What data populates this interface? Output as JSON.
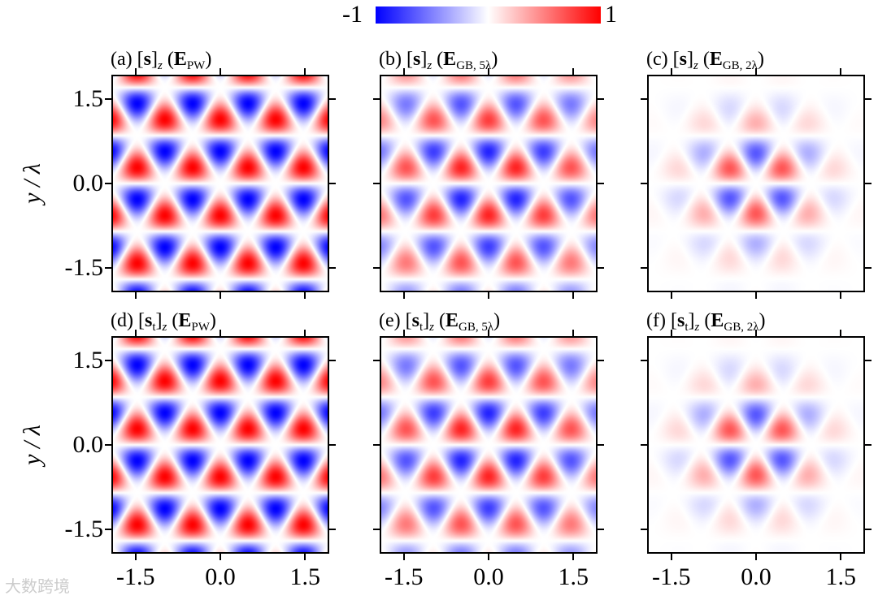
{
  "colorbar": {
    "min_label": "-1",
    "max_label": "1",
    "colors": [
      "#0000ff",
      "#ffffff",
      "#ff0000"
    ]
  },
  "y_axis_title": "y / λ",
  "watermark": "大数跨境",
  "chart_data": [
    {
      "type": "heatmap",
      "panel": "(a)",
      "quantity": "[s]z",
      "field": "E_PW",
      "field_main": "E",
      "field_sub": "PW",
      "amplitude": 1.0,
      "envelope_waist": null,
      "xlim": [
        -1.9,
        1.9
      ],
      "ylim": [
        -1.9,
        1.9
      ],
      "xticks": [
        -1.5,
        0.0,
        1.5
      ],
      "xtick_labels": [
        "-1.5",
        "0.0",
        "1.5"
      ],
      "yticks": [
        -1.5,
        0.0,
        1.5
      ],
      "ytick_labels": [
        "-1.5",
        "0.0",
        "1.5"
      ],
      "vmin": -1,
      "vmax": 1
    },
    {
      "type": "heatmap",
      "panel": "(b)",
      "quantity": "[s]z",
      "field": "E_GB,5λ",
      "field_main": "E",
      "field_sub": "GB, 5λ",
      "amplitude": 0.9,
      "envelope_waist": 5,
      "xlim": [
        -1.9,
        1.9
      ],
      "ylim": [
        -1.9,
        1.9
      ],
      "xticks": [
        -1.5,
        0.0,
        1.5
      ],
      "xtick_labels": [
        "-1.5",
        "0.0",
        "1.5"
      ],
      "yticks": [
        -1.5,
        0.0,
        1.5
      ],
      "ytick_labels": [
        "-1.5",
        "0.0",
        "1.5"
      ],
      "vmin": -1,
      "vmax": 1
    },
    {
      "type": "heatmap",
      "panel": "(c)",
      "quantity": "[s]z",
      "field": "E_GB,2λ",
      "field_main": "E",
      "field_sub": "GB, 2λ",
      "amplitude": 0.85,
      "envelope_waist": 2,
      "xlim": [
        -1.9,
        1.9
      ],
      "ylim": [
        -1.9,
        1.9
      ],
      "xticks": [
        -1.5,
        0.0,
        1.5
      ],
      "xtick_labels": [
        "-1.5",
        "0.0",
        "1.5"
      ],
      "yticks": [
        -1.5,
        0.0,
        1.5
      ],
      "ytick_labels": [
        "-1.5",
        "0.0",
        "1.5"
      ],
      "vmin": -1,
      "vmax": 1
    },
    {
      "type": "heatmap",
      "panel": "(d)",
      "quantity": "[st]z",
      "field": "E_PW",
      "field_main": "E",
      "field_sub": "PW",
      "amplitude": 1.0,
      "envelope_waist": null,
      "xlim": [
        -1.9,
        1.9
      ],
      "ylim": [
        -1.9,
        1.9
      ],
      "xticks": [
        -1.5,
        0.0,
        1.5
      ],
      "xtick_labels": [
        "-1.5",
        "0.0",
        "1.5"
      ],
      "yticks": [
        -1.5,
        0.0,
        1.5
      ],
      "ytick_labels": [
        "-1.5",
        "0.0",
        "1.5"
      ],
      "vmin": -1,
      "vmax": 1
    },
    {
      "type": "heatmap",
      "panel": "(e)",
      "quantity": "[st]z",
      "field": "E_GB,5λ",
      "field_main": "E",
      "field_sub": "GB, 5λ",
      "amplitude": 0.9,
      "envelope_waist": 5,
      "xlim": [
        -1.9,
        1.9
      ],
      "ylim": [
        -1.9,
        1.9
      ],
      "xticks": [
        -1.5,
        0.0,
        1.5
      ],
      "xtick_labels": [
        "-1.5",
        "0.0",
        "1.5"
      ],
      "yticks": [
        -1.5,
        0.0,
        1.5
      ],
      "ytick_labels": [
        "-1.5",
        "0.0",
        "1.5"
      ],
      "vmin": -1,
      "vmax": 1
    },
    {
      "type": "heatmap",
      "panel": "(f)",
      "quantity": "[st]z",
      "field": "E_GB,2λ",
      "field_main": "E",
      "field_sub": "GB, 2λ",
      "amplitude": 0.85,
      "envelope_waist": 2,
      "xlim": [
        -1.9,
        1.9
      ],
      "ylim": [
        -1.9,
        1.9
      ],
      "xticks": [
        -1.5,
        0.0,
        1.5
      ],
      "xtick_labels": [
        "-1.5",
        "0.0",
        "1.5"
      ],
      "yticks": [
        -1.5,
        0.0,
        1.5
      ],
      "ytick_labels": [
        "-1.5",
        "0.0",
        "1.5"
      ],
      "vmin": -1,
      "vmax": 1
    }
  ]
}
